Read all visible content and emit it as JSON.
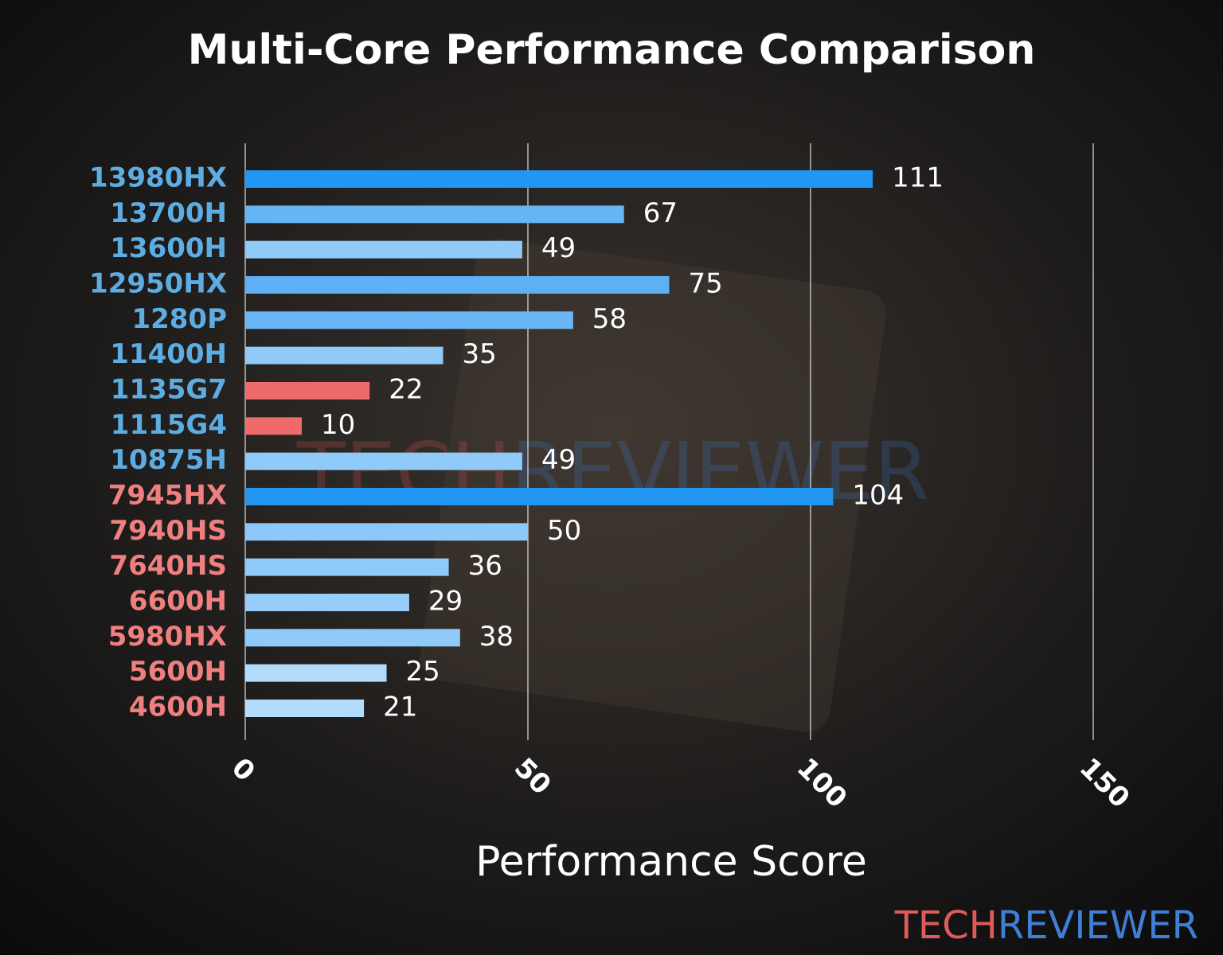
{
  "chart_data": {
    "type": "barh",
    "title": "Multi-Core Performance Comparison",
    "xlabel": "Performance Score",
    "categories": [
      "13980HX",
      "13700H",
      "13600H",
      "12950HX",
      "1280P",
      "11400H",
      "1135G7",
      "1115G4",
      "10875H",
      "7945HX",
      "7940HS",
      "7640HS",
      "6600H",
      "5980HX",
      "5600H",
      "4600H"
    ],
    "values": [
      111,
      67,
      49,
      75,
      58,
      35,
      22,
      10,
      49,
      104,
      50,
      36,
      29,
      38,
      25,
      21
    ],
    "colors": [
      "#2196f3",
      "#64b5f6",
      "#90caf9",
      "#5eb0f5",
      "#6ab7f7",
      "#90caf9",
      "#ef6b6b",
      "#ef6b6b",
      "#90caf9",
      "#2196f3",
      "#8cc8fa",
      "#90caf9",
      "#96cdfa",
      "#90caf9",
      "#b3dcfc",
      "#b3dcfc"
    ],
    "label_colors": [
      "#5dade2",
      "#5dade2",
      "#5dade2",
      "#5dade2",
      "#5dade2",
      "#5dade2",
      "#5dade2",
      "#5dade2",
      "#5dade2",
      "#f08080",
      "#f08080",
      "#f08080",
      "#f08080",
      "#f08080",
      "#f08080",
      "#f08080"
    ],
    "xlim": [
      0,
      150
    ],
    "xticks": [
      0,
      50,
      100,
      150
    ],
    "grid": true,
    "brand": [
      "TECH",
      "REVIEWER"
    ],
    "brand_colors": [
      "#e05a5a",
      "#3f7fd6"
    ]
  }
}
